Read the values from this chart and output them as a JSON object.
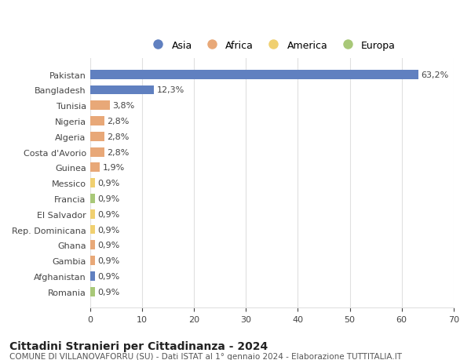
{
  "categories": [
    "Pakistan",
    "Bangladesh",
    "Tunisia",
    "Nigeria",
    "Algeria",
    "Costa d'Avorio",
    "Guinea",
    "Messico",
    "Francia",
    "El Salvador",
    "Rep. Dominicana",
    "Ghana",
    "Gambia",
    "Afghanistan",
    "Romania"
  ],
  "values": [
    63.2,
    12.3,
    3.8,
    2.8,
    2.8,
    2.8,
    1.9,
    0.9,
    0.9,
    0.9,
    0.9,
    0.9,
    0.9,
    0.9,
    0.9
  ],
  "labels": [
    "63,2%",
    "12,3%",
    "3,8%",
    "2,8%",
    "2,8%",
    "2,8%",
    "1,9%",
    "0,9%",
    "0,9%",
    "0,9%",
    "0,9%",
    "0,9%",
    "0,9%",
    "0,9%",
    "0,9%"
  ],
  "continents": [
    "Asia",
    "Asia",
    "Africa",
    "Africa",
    "Africa",
    "Africa",
    "Africa",
    "America",
    "Europa",
    "America",
    "America",
    "Africa",
    "Africa",
    "Asia",
    "Europa"
  ],
  "continent_colors": {
    "Asia": "#6080C0",
    "Africa": "#E8A878",
    "America": "#F0D070",
    "Europa": "#A8C878"
  },
  "legend_order": [
    "Asia",
    "Africa",
    "America",
    "Europa"
  ],
  "title": "Cittadini Stranieri per Cittadinanza - 2024",
  "subtitle": "COMUNE DI VILLANOVAFORRU (SU) - Dati ISTAT al 1° gennaio 2024 - Elaborazione TUTTITALIA.IT",
  "xlim": [
    0,
    70
  ],
  "xticks": [
    0,
    10,
    20,
    30,
    40,
    50,
    60,
    70
  ],
  "background_color": "#ffffff",
  "grid_color": "#e0e0e0",
  "bar_height": 0.6,
  "label_fontsize": 8,
  "tick_fontsize": 8,
  "title_fontsize": 10,
  "subtitle_fontsize": 7.5
}
